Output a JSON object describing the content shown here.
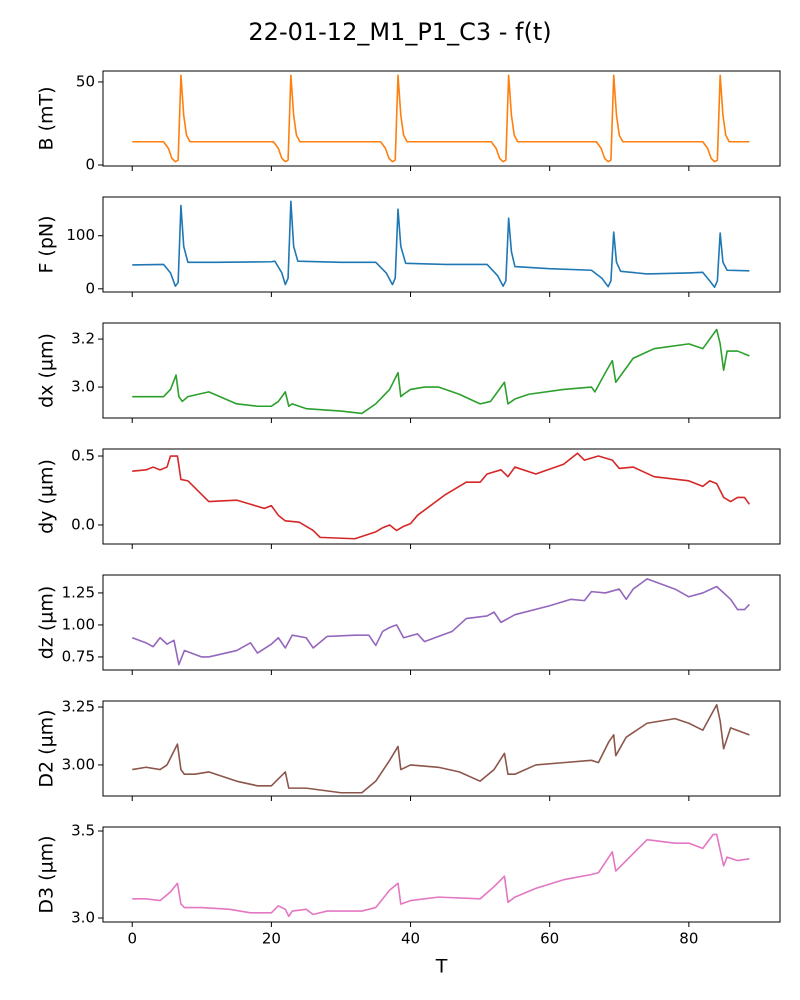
{
  "title": "22-01-12_M1_P1_C3 - f(t)",
  "sharex": true,
  "chart_data": [
    {
      "type": "line",
      "ylabel": "B (mT)",
      "color": "#ff7f0e",
      "ylim": [
        -0.6,
        56.6
      ],
      "yticks": [
        0,
        50
      ],
      "x": [
        0,
        4.5,
        5.2,
        5.7,
        6.2,
        6.6,
        7.0,
        7.4,
        7.8,
        8.3,
        20.3,
        21.0,
        21.5,
        22.0,
        22.4,
        22.8,
        23.2,
        23.6,
        24.1,
        35.7,
        36.4,
        36.9,
        37.4,
        37.8,
        38.2,
        38.6,
        39.0,
        39.5,
        51.6,
        52.3,
        52.8,
        53.3,
        53.7,
        54.1,
        54.5,
        54.9,
        55.4,
        66.7,
        67.4,
        67.9,
        68.4,
        68.8,
        69.2,
        69.6,
        70.0,
        70.5,
        82.0,
        82.7,
        83.2,
        83.7,
        84.1,
        84.5,
        84.9,
        85.3,
        85.8,
        88.7
      ],
      "values": [
        14,
        14,
        10,
        4,
        2,
        3,
        54,
        30,
        18,
        14,
        14,
        10,
        4,
        2,
        3,
        54,
        30,
        18,
        14,
        14,
        10,
        4,
        2,
        3,
        54,
        30,
        18,
        14,
        14,
        10,
        4,
        2,
        3,
        54,
        30,
        18,
        14,
        14,
        10,
        4,
        2,
        3,
        54,
        30,
        18,
        14,
        14,
        10,
        4,
        2,
        3,
        54,
        30,
        18,
        14,
        14
      ]
    },
    {
      "type": "line",
      "ylabel": "F (pN)",
      "color": "#1f77b4",
      "ylim": [
        -6,
        173
      ],
      "yticks": [
        0,
        100
      ],
      "x": [
        0,
        4.5,
        5.5,
        6.2,
        6.6,
        7.0,
        7.4,
        8,
        12,
        20,
        20.5,
        21.5,
        22.0,
        22.4,
        22.8,
        23.2,
        23.8,
        30,
        35,
        36.5,
        37.4,
        37.8,
        38.2,
        38.6,
        39.3,
        45,
        51,
        52.5,
        53.3,
        53.7,
        54.1,
        54.5,
        55,
        60,
        66,
        67.5,
        68.4,
        68.8,
        69.2,
        69.6,
        70.2,
        74,
        80,
        82,
        83,
        83.7,
        84.1,
        84.5,
        84.9,
        85.5,
        88.7
      ],
      "values": [
        45,
        46,
        30,
        5,
        12,
        157,
        80,
        50,
        50,
        51,
        52,
        30,
        8,
        20,
        165,
        80,
        52,
        50,
        50,
        30,
        8,
        20,
        150,
        80,
        48,
        46,
        46,
        25,
        5,
        15,
        133,
        70,
        42,
        38,
        35,
        20,
        4,
        15,
        107,
        50,
        33,
        28,
        30,
        31,
        15,
        3,
        15,
        105,
        50,
        35,
        34
      ]
    },
    {
      "type": "line",
      "ylabel": "dx (µm)",
      "color": "#2ca02c",
      "ylim": [
        2.871,
        3.267
      ],
      "yticks": [
        {
          "value": 3,
          "label": "3.0"
        },
        3.2
      ],
      "x": [
        0,
        3,
        4.5,
        5.5,
        6.3,
        6.7,
        7.2,
        8,
        11,
        15,
        18,
        20,
        21,
        22,
        22.5,
        23,
        25,
        30,
        33,
        35,
        37,
        38.2,
        38.6,
        39,
        40,
        42,
        44,
        47,
        50,
        51.5,
        52.5,
        53.5,
        54,
        55,
        57,
        62,
        66,
        66.5,
        68,
        69,
        69.5,
        71,
        72,
        75,
        80,
        82,
        84,
        84.5,
        85,
        85.5,
        87,
        88.7
      ],
      "values": [
        2.96,
        2.96,
        2.96,
        2.99,
        3.05,
        2.96,
        2.94,
        2.96,
        2.98,
        2.93,
        2.92,
        2.92,
        2.94,
        2.98,
        2.92,
        2.93,
        2.91,
        2.9,
        2.89,
        2.93,
        2.99,
        3.06,
        2.96,
        2.97,
        2.99,
        3.0,
        3.0,
        2.97,
        2.93,
        2.94,
        2.98,
        3.02,
        2.93,
        2.95,
        2.97,
        2.99,
        3.0,
        2.98,
        3.06,
        3.11,
        3.02,
        3.08,
        3.12,
        3.16,
        3.18,
        3.16,
        3.24,
        3.18,
        3.07,
        3.15,
        3.15,
        3.13
      ]
    },
    {
      "type": "line",
      "ylabel": "dy (µm)",
      "color": "#d62728",
      "ylim": [
        -0.138,
        0.551
      ],
      "yticks": [
        {
          "value": 0,
          "label": "0.0"
        },
        0.5
      ],
      "x": [
        0,
        2,
        3,
        4,
        5,
        5.5,
        6.5,
        7,
        8,
        11,
        15,
        17,
        19,
        20,
        21,
        22,
        24,
        26,
        27,
        32,
        35,
        36,
        37,
        38,
        39,
        40,
        41,
        45,
        48,
        50,
        51,
        53,
        54,
        55,
        58,
        62,
        64,
        65,
        67,
        69,
        70,
        72,
        75,
        80,
        82,
        83,
        84,
        85,
        86,
        87,
        88,
        88.7
      ],
      "values": [
        0.39,
        0.4,
        0.42,
        0.4,
        0.42,
        0.5,
        0.5,
        0.33,
        0.32,
        0.17,
        0.18,
        0.15,
        0.12,
        0.14,
        0.07,
        0.03,
        0.02,
        -0.04,
        -0.09,
        -0.1,
        -0.05,
        -0.02,
        0.0,
        -0.04,
        -0.01,
        0.01,
        0.07,
        0.22,
        0.31,
        0.31,
        0.37,
        0.4,
        0.35,
        0.42,
        0.37,
        0.44,
        0.52,
        0.47,
        0.5,
        0.47,
        0.41,
        0.42,
        0.35,
        0.32,
        0.28,
        0.32,
        0.3,
        0.2,
        0.17,
        0.2,
        0.2,
        0.15
      ]
    },
    {
      "type": "line",
      "ylabel": "dz (µm)",
      "color": "#9467bd",
      "ylim": [
        0.648,
        1.39
      ],
      "yticks": [
        0.75,
        {
          "value": 1,
          "label": "1.00"
        },
        1.25
      ],
      "x": [
        0,
        2,
        3,
        4,
        5,
        6,
        6.7,
        7.5,
        10,
        11,
        15,
        17,
        18,
        20,
        21,
        22,
        23,
        25,
        26,
        28,
        32,
        34,
        35,
        36,
        37,
        38,
        39,
        41,
        42,
        46,
        48,
        51,
        52,
        53,
        55,
        60,
        63,
        65,
        66,
        68,
        70,
        71,
        72,
        74,
        78,
        80,
        82,
        84,
        86,
        87,
        88,
        88.7
      ],
      "values": [
        0.9,
        0.86,
        0.83,
        0.9,
        0.85,
        0.88,
        0.69,
        0.8,
        0.75,
        0.75,
        0.8,
        0.86,
        0.78,
        0.85,
        0.9,
        0.82,
        0.92,
        0.9,
        0.82,
        0.91,
        0.92,
        0.92,
        0.84,
        0.95,
        0.98,
        1.0,
        0.9,
        0.93,
        0.87,
        0.95,
        1.05,
        1.07,
        1.1,
        1.02,
        1.08,
        1.15,
        1.2,
        1.19,
        1.26,
        1.25,
        1.28,
        1.2,
        1.28,
        1.36,
        1.28,
        1.22,
        1.25,
        1.3,
        1.2,
        1.12,
        1.12,
        1.16
      ]
    },
    {
      "type": "line",
      "ylabel": "D2 (µm)",
      "color": "#8c564b",
      "ylim": [
        2.866,
        3.276
      ],
      "yticks": [
        {
          "value": 3,
          "label": "3.00"
        },
        3.25
      ],
      "x": [
        0,
        2,
        4,
        5,
        6.5,
        7,
        7.5,
        9,
        11,
        15,
        18,
        20,
        22,
        22.5,
        25,
        30,
        33,
        35,
        37,
        38.2,
        38.6,
        40,
        44,
        47,
        50,
        52,
        53.5,
        54,
        55,
        58,
        62,
        66,
        67,
        68.5,
        69.2,
        69.5,
        71,
        74,
        78,
        80,
        82,
        84,
        84.5,
        85,
        86,
        88.7
      ],
      "values": [
        2.98,
        2.99,
        2.98,
        3.0,
        3.09,
        2.98,
        2.96,
        2.96,
        2.97,
        2.93,
        2.91,
        2.91,
        2.97,
        2.9,
        2.9,
        2.88,
        2.88,
        2.93,
        3.02,
        3.08,
        2.98,
        3.0,
        2.99,
        2.97,
        2.93,
        2.98,
        3.05,
        2.96,
        2.96,
        3.0,
        3.01,
        3.02,
        3.01,
        3.1,
        3.13,
        3.04,
        3.12,
        3.18,
        3.2,
        3.18,
        3.15,
        3.26,
        3.19,
        3.07,
        3.16,
        3.13
      ]
    },
    {
      "type": "line",
      "ylabel": "D3 (µm)",
      "xlabel": "T",
      "color": "#e377c2",
      "ylim": [
        2.977,
        3.523
      ],
      "yticks": [
        {
          "value": 3,
          "label": "3.0"
        },
        3.5
      ],
      "xlim": [
        -4.2,
        93.1
      ],
      "xticks": [
        0,
        20,
        40,
        60,
        80
      ],
      "x": [
        0,
        2,
        4,
        5.5,
        6.5,
        7,
        7.5,
        10,
        14,
        17,
        20,
        21,
        22,
        22.5,
        23,
        25,
        26,
        28,
        33,
        35,
        37,
        38.2,
        38.6,
        40,
        44,
        50,
        52,
        53.5,
        54,
        55,
        58,
        62,
        66,
        67,
        68.5,
        69,
        69.5,
        71,
        74,
        78,
        80,
        82,
        83.5,
        84,
        85,
        85.5,
        87,
        88.7
      ],
      "values": [
        3.11,
        3.11,
        3.1,
        3.15,
        3.2,
        3.08,
        3.06,
        3.06,
        3.05,
        3.03,
        3.03,
        3.07,
        3.05,
        3.01,
        3.04,
        3.05,
        3.02,
        3.04,
        3.04,
        3.06,
        3.16,
        3.2,
        3.08,
        3.1,
        3.12,
        3.11,
        3.18,
        3.24,
        3.09,
        3.12,
        3.17,
        3.22,
        3.25,
        3.26,
        3.35,
        3.38,
        3.27,
        3.33,
        3.45,
        3.43,
        3.43,
        3.4,
        3.48,
        3.48,
        3.3,
        3.35,
        3.33,
        3.34
      ]
    }
  ]
}
